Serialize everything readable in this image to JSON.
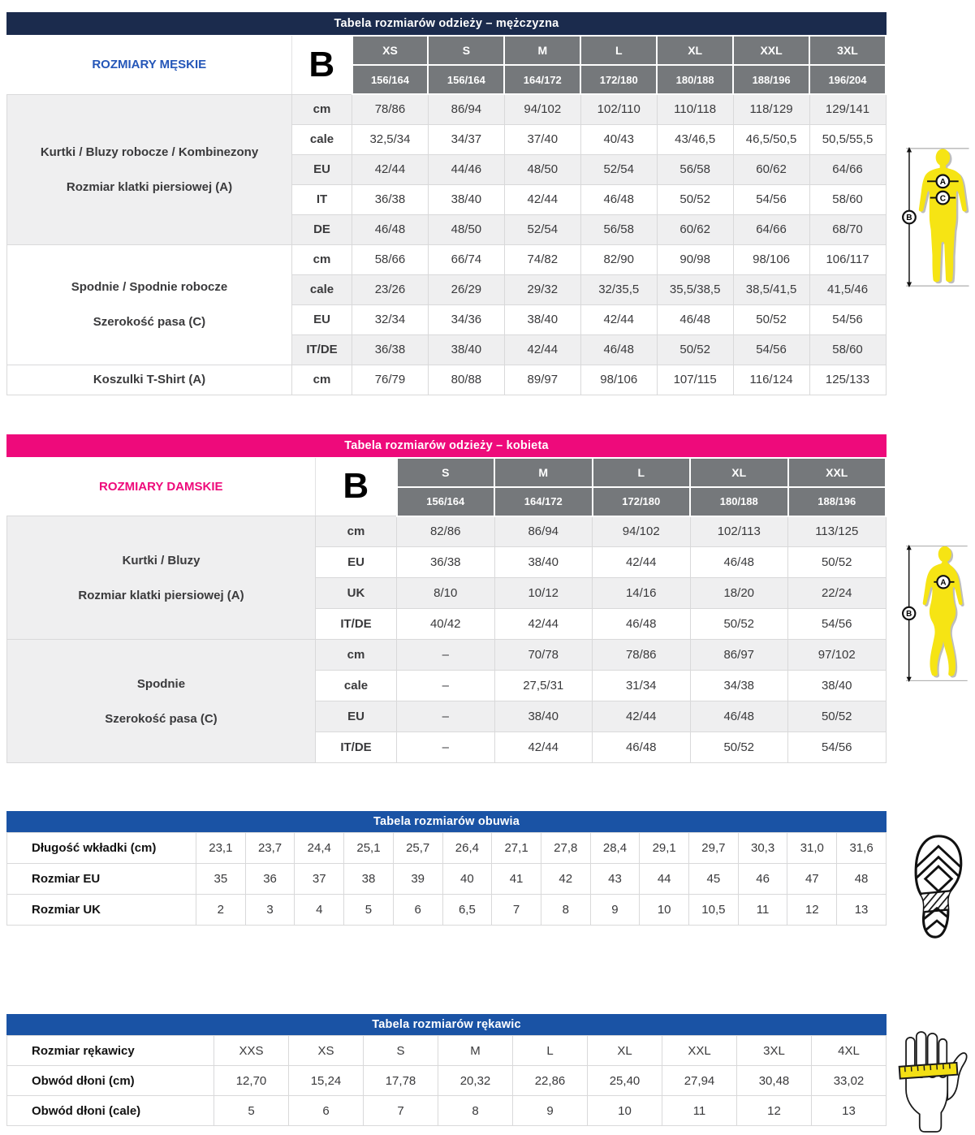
{
  "colors": {
    "men_header_navy": "#1b2b4d",
    "women_header_pink": "#ee0a7b",
    "blue_bar": "#1a53a5",
    "size_header_gray": "#75787b",
    "stripe_gray": "#efeff0",
    "men_accent_text": "#2456b8",
    "figure_yellow": "#f6e414"
  },
  "figures": {
    "marker_a": "A",
    "marker_b": "B",
    "marker_c": "C"
  },
  "men_table": {
    "title": "Tabela rozmiarów odzieży – mężczyzna",
    "corner_label": "ROZMIARY MĘSKIE",
    "b_label": "B",
    "sizes": [
      "XS",
      "S",
      "M",
      "L",
      "XL",
      "XXL",
      "3XL"
    ],
    "heights": [
      "156/164",
      "156/164",
      "164/172",
      "172/180",
      "180/188",
      "188/196",
      "196/204"
    ],
    "sections": [
      {
        "label_line1": "Kurtki / Bluzy robocze / Kombinezony",
        "label_line2": "Rozmiar klatki piersiowej (A)",
        "rows": [
          {
            "unit": "cm",
            "values": [
              "78/86",
              "86/94",
              "94/102",
              "102/110",
              "110/118",
              "118/129",
              "129/141"
            ]
          },
          {
            "unit": "cale",
            "values": [
              "32,5/34",
              "34/37",
              "37/40",
              "40/43",
              "43/46,5",
              "46,5/50,5",
              "50,5/55,5"
            ]
          },
          {
            "unit": "EU",
            "values": [
              "42/44",
              "44/46",
              "48/50",
              "52/54",
              "56/58",
              "60/62",
              "64/66"
            ]
          },
          {
            "unit": "IT",
            "values": [
              "36/38",
              "38/40",
              "42/44",
              "46/48",
              "50/52",
              "54/56",
              "58/60"
            ]
          },
          {
            "unit": "DE",
            "values": [
              "46/48",
              "48/50",
              "52/54",
              "56/58",
              "60/62",
              "64/66",
              "68/70"
            ]
          }
        ]
      },
      {
        "label_line1": "Spodnie / Spodnie robocze",
        "label_line2": "Szerokość pasa (C)",
        "rows": [
          {
            "unit": "cm",
            "values": [
              "58/66",
              "66/74",
              "74/82",
              "82/90",
              "90/98",
              "98/106",
              "106/117"
            ]
          },
          {
            "unit": "cale",
            "values": [
              "23/26",
              "26/29",
              "29/32",
              "32/35,5",
              "35,5/38,5",
              "38,5/41,5",
              "41,5/46"
            ]
          },
          {
            "unit": "EU",
            "values": [
              "32/34",
              "34/36",
              "38/40",
              "42/44",
              "46/48",
              "50/52",
              "54/56"
            ]
          },
          {
            "unit": "IT/DE",
            "values": [
              "36/38",
              "38/40",
              "42/44",
              "46/48",
              "50/52",
              "54/56",
              "58/60"
            ]
          }
        ]
      },
      {
        "label_line1": "Koszulki T-Shirt (A)",
        "label_line2": "",
        "rows": [
          {
            "unit": "cm",
            "values": [
              "76/79",
              "80/88",
              "89/97",
              "98/106",
              "107/115",
              "116/124",
              "125/133"
            ]
          }
        ]
      }
    ]
  },
  "women_table": {
    "title": "Tabela rozmiarów odzieży – kobieta",
    "corner_label": "ROZMIARY DAMSKIE",
    "b_label": "B",
    "sizes": [
      "S",
      "M",
      "L",
      "XL",
      "XXL"
    ],
    "heights": [
      "156/164",
      "164/172",
      "172/180",
      "180/188",
      "188/196"
    ],
    "sections": [
      {
        "label_line1": "Kurtki / Bluzy",
        "label_line2": "Rozmiar klatki piersiowej (A)",
        "rows": [
          {
            "unit": "cm",
            "values": [
              "82/86",
              "86/94",
              "94/102",
              "102/113",
              "113/125"
            ]
          },
          {
            "unit": "EU",
            "values": [
              "36/38",
              "38/40",
              "42/44",
              "46/48",
              "50/52"
            ]
          },
          {
            "unit": "UK",
            "values": [
              "8/10",
              "10/12",
              "14/16",
              "18/20",
              "22/24"
            ]
          },
          {
            "unit": "IT/DE",
            "values": [
              "40/42",
              "42/44",
              "46/48",
              "50/52",
              "54/56"
            ]
          }
        ]
      },
      {
        "label_line1": "Spodnie",
        "label_line2": "Szerokość pasa (C)",
        "rows": [
          {
            "unit": "cm",
            "values": [
              "–",
              "70/78",
              "78/86",
              "86/97",
              "97/102"
            ]
          },
          {
            "unit": "cale",
            "values": [
              "–",
              "27,5/31",
              "31/34",
              "34/38",
              "38/40"
            ]
          },
          {
            "unit": "EU",
            "values": [
              "–",
              "38/40",
              "42/44",
              "46/48",
              "50/52"
            ]
          },
          {
            "unit": "IT/DE",
            "values": [
              "–",
              "42/44",
              "46/48",
              "50/52",
              "54/56"
            ]
          }
        ]
      }
    ]
  },
  "shoes_table": {
    "title": "Tabela rozmiarów obuwia",
    "rows": [
      {
        "label": "Długość wkładki (cm)",
        "values": [
          "23,1",
          "23,7",
          "24,4",
          "25,1",
          "25,7",
          "26,4",
          "27,1",
          "27,8",
          "28,4",
          "29,1",
          "29,7",
          "30,3",
          "31,0",
          "31,6"
        ]
      },
      {
        "label": "Rozmiar EU",
        "values": [
          "35",
          "36",
          "37",
          "38",
          "39",
          "40",
          "41",
          "42",
          "43",
          "44",
          "45",
          "46",
          "47",
          "48"
        ]
      },
      {
        "label": "Rozmiar UK",
        "values": [
          "2",
          "3",
          "4",
          "5",
          "6",
          "6,5",
          "7",
          "8",
          "9",
          "10",
          "10,5",
          "11",
          "12",
          "13"
        ]
      }
    ]
  },
  "gloves_table": {
    "title": "Tabela rozmiarów rękawic",
    "rows": [
      {
        "label": "Rozmiar rękawicy",
        "values": [
          "XXS",
          "XS",
          "S",
          "M",
          "L",
          "XL",
          "XXL",
          "3XL",
          "4XL"
        ]
      },
      {
        "label": "Obwód dłoni (cm)",
        "values": [
          "12,70",
          "15,24",
          "17,78",
          "20,32",
          "22,86",
          "25,40",
          "27,94",
          "30,48",
          "33,02"
        ]
      },
      {
        "label": "Obwód dłoni (cale)",
        "values": [
          "5",
          "6",
          "7",
          "8",
          "9",
          "10",
          "11",
          "12",
          "13"
        ]
      }
    ]
  }
}
